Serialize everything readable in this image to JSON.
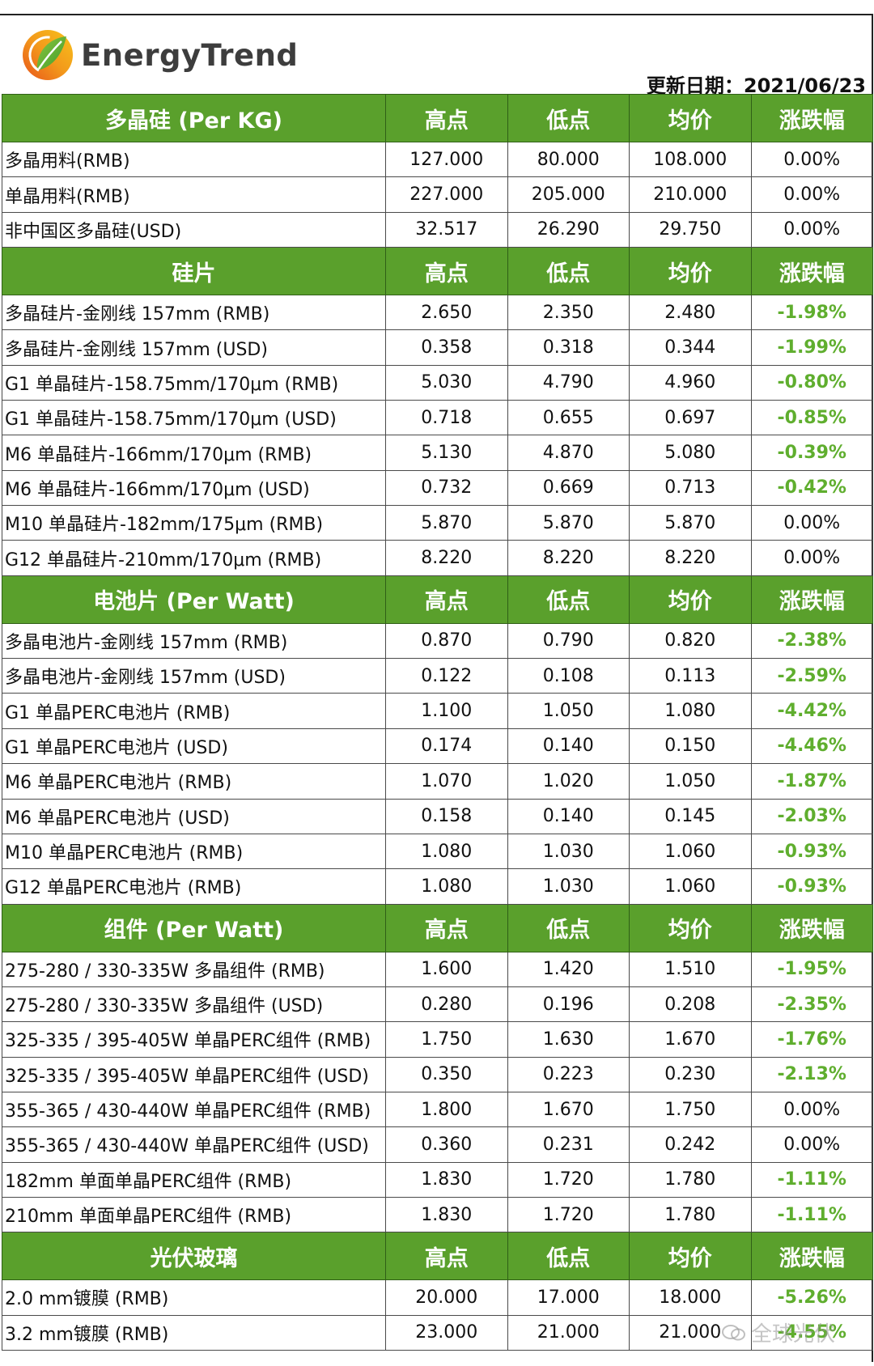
{
  "brand": {
    "name": "EnergyTrend"
  },
  "update": {
    "label": "更新日期：2021/06/23"
  },
  "columns": [
    "高点",
    "低点",
    "均价",
    "涨跌幅"
  ],
  "sections": [
    {
      "title": "多晶硅 (Per KG)",
      "rows": [
        [
          "多晶用料(RMB)",
          "127.000",
          "80.000",
          "108.000",
          "0.00%"
        ],
        [
          "单晶用料(RMB)",
          "227.000",
          "205.000",
          "210.000",
          "0.00%"
        ],
        [
          "非中国区多晶硅(USD)",
          "32.517",
          "26.290",
          "29.750",
          "0.00%"
        ]
      ]
    },
    {
      "title": "硅片",
      "rows": [
        [
          "多晶硅片-金刚线 157mm (RMB)",
          "2.650",
          "2.350",
          "2.480",
          "-1.98%"
        ],
        [
          "多晶硅片-金刚线 157mm (USD)",
          "0.358",
          "0.318",
          "0.344",
          "-1.99%"
        ],
        [
          "G1 单晶硅片-158.75mm/170μm (RMB)",
          "5.030",
          "4.790",
          "4.960",
          "-0.80%"
        ],
        [
          "G1 单晶硅片-158.75mm/170μm (USD)",
          "0.718",
          "0.655",
          "0.697",
          "-0.85%"
        ],
        [
          "M6 单晶硅片-166mm/170μm (RMB)",
          "5.130",
          "4.870",
          "5.080",
          "-0.39%"
        ],
        [
          "M6 单晶硅片-166mm/170μm (USD)",
          "0.732",
          "0.669",
          "0.713",
          "-0.42%"
        ],
        [
          "M10 单晶硅片-182mm/175μm (RMB)",
          "5.870",
          "5.870",
          "5.870",
          "0.00%"
        ],
        [
          "G12 单晶硅片-210mm/170μm  (RMB)",
          "8.220",
          "8.220",
          "8.220",
          "0.00%"
        ]
      ]
    },
    {
      "title": "电池片 (Per Watt)",
      "rows": [
        [
          "多晶电池片-金刚线 157mm (RMB)",
          "0.870",
          "0.790",
          "0.820",
          "-2.38%"
        ],
        [
          "多晶电池片-金刚线 157mm (USD)",
          "0.122",
          "0.108",
          "0.113",
          "-2.59%"
        ],
        [
          "G1 单晶PERC电池片 (RMB)",
          "1.100",
          "1.050",
          "1.080",
          "-4.42%"
        ],
        [
          "G1 单晶PERC电池片  (USD)",
          "0.174",
          "0.140",
          "0.150",
          "-4.46%"
        ],
        [
          "M6 单晶PERC电池片 (RMB)",
          "1.070",
          "1.020",
          "1.050",
          "-1.87%"
        ],
        [
          "M6 单晶PERC电池片 (USD)",
          "0.158",
          "0.140",
          "0.145",
          "-2.03%"
        ],
        [
          "M10 单晶PERC电池片 (RMB)",
          "1.080",
          "1.030",
          "1.060",
          "-0.93%"
        ],
        [
          "G12 单晶PERC电池片 (RMB)",
          "1.080",
          "1.030",
          "1.060",
          "-0.93%"
        ]
      ]
    },
    {
      "title": "组件 (Per Watt)",
      "rows": [
        [
          "275-280 / 330-335W 多晶组件 (RMB)",
          "1.600",
          "1.420",
          "1.510",
          "-1.95%"
        ],
        [
          "275-280 / 330-335W 多晶组件 (USD)",
          "0.280",
          "0.196",
          "0.208",
          "-2.35%"
        ],
        [
          "325-335 / 395-405W 单晶PERC组件 (RMB)",
          "1.750",
          "1.630",
          "1.670",
          "-1.76%"
        ],
        [
          "325-335 / 395-405W 单晶PERC组件 (USD)",
          "0.350",
          "0.223",
          "0.230",
          "-2.13%"
        ],
        [
          "355-365 / 430-440W 单晶PERC组件 (RMB)",
          "1.800",
          "1.670",
          "1.750",
          "0.00%"
        ],
        [
          "355-365 / 430-440W 单晶PERC组件 (USD)",
          "0.360",
          "0.231",
          "0.242",
          "0.00%"
        ],
        [
          "182mm 单面单晶PERC组件 (RMB)",
          "1.830",
          "1.720",
          "1.780",
          "-1.11%"
        ],
        [
          "210mm 单面单晶PERC组件 (RMB)",
          "1.830",
          "1.720",
          "1.780",
          "-1.11%"
        ]
      ]
    },
    {
      "title": "光伏玻璃",
      "rows": [
        [
          "2.0 mm镀膜 (RMB)",
          "20.000",
          "17.000",
          "18.000",
          "-5.26%"
        ],
        [
          "3.2 mm镀膜 (RMB)",
          "23.000",
          "21.000",
          "21.000",
          "-4.55%"
        ]
      ]
    }
  ],
  "watermark": {
    "text": "全球光伏"
  },
  "colors": {
    "header_green": "#5aa02c",
    "negative_green": "#5fae2e"
  },
  "icons": {
    "logo": "energytrend-leaf-logo",
    "watermark": "wechat-icon"
  }
}
